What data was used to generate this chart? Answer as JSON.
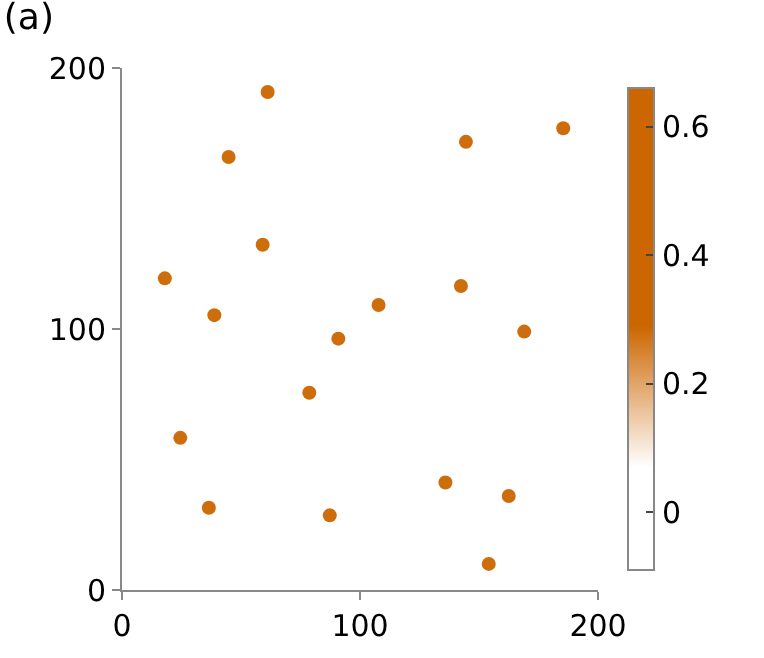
{
  "chart_data": {
    "type": "scatter",
    "title": "(a)",
    "x": [
      61.2,
      44.8,
      144.5,
      185.4,
      59.1,
      18.0,
      38.8,
      107.8,
      142.4,
      90.9,
      169.0,
      78.7,
      24.5,
      36.5,
      87.3,
      135.9,
      162.5,
      154.1
    ],
    "series": [
      {
        "color": "#cc6600",
        "values": [
          190.8,
          165.9,
          171.7,
          176.9,
          132.3,
          119.4,
          105.3,
          109.2,
          116.5,
          96.3,
          99.0,
          75.6,
          58.3,
          31.5,
          28.6,
          41.2,
          36.0,
          10.0
        ],
        "cvalues": [
          0.28,
          0.28,
          0.28,
          0.28,
          0.28,
          0.28,
          0.28,
          0.28,
          0.28,
          0.28,
          0.28,
          0.28,
          0.28,
          0.28,
          0.28,
          0.28,
          0.28,
          0.28
        ]
      }
    ],
    "xlim": [
      0,
      200
    ],
    "ylim": [
      0,
      200
    ],
    "xticks": [
      0,
      100,
      200
    ],
    "yticks": [
      0,
      100,
      200
    ],
    "clim": [
      -0.09,
      0.66
    ],
    "cticks": [
      0,
      0.2,
      0.4,
      0.6
    ],
    "marker": "circle",
    "legend": false
  }
}
